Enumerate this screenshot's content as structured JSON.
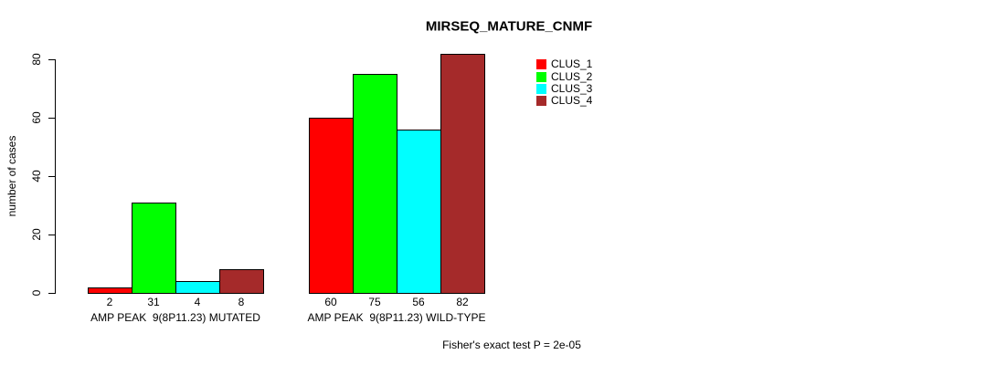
{
  "chart_data": {
    "type": "bar",
    "title": "MIRSEQ_MATURE_CNMF",
    "ylabel": "number of cases",
    "ylim": [
      0,
      80
    ],
    "yticks": [
      0,
      20,
      40,
      60,
      80
    ],
    "categories": [
      "AMP PEAK  9(8P11.23) MUTATED",
      "AMP PEAK  9(8P11.23) WILD-TYPE"
    ],
    "series": [
      {
        "name": "CLUS_1",
        "color": "#FF0000",
        "values": [
          2,
          60
        ]
      },
      {
        "name": "CLUS_2",
        "color": "#00FF00",
        "values": [
          31,
          75
        ]
      },
      {
        "name": "CLUS_3",
        "color": "#00FFFF",
        "values": [
          4,
          56
        ]
      },
      {
        "name": "CLUS_4",
        "color": "#A52A2A",
        "values": [
          8,
          82
        ]
      }
    ],
    "bar_value_labels": true,
    "legend_position": "top-right",
    "grid": "off",
    "footnote": "Fisher's exact test P = 2e-05",
    "colors": {
      "background": "#FFFFFF",
      "axis": "#000000",
      "text": "#000000"
    }
  }
}
